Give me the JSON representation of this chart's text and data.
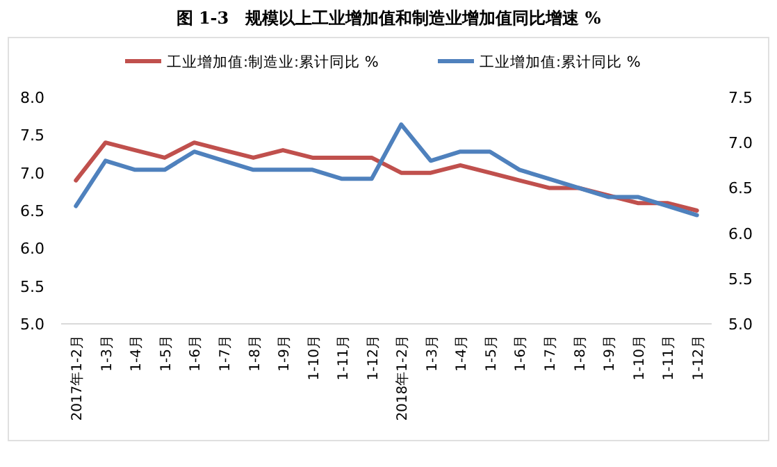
{
  "chart_data": {
    "type": "line",
    "title": "图 1-3　规模以上工业增加值和制造业增加值同比增速 %",
    "categories": [
      "2017年1-2月",
      "1-3月",
      "1-4月",
      "1-5月",
      "1-6月",
      "1-7月",
      "1-8月",
      "1-9月",
      "1-10月",
      "1-11月",
      "1-12月",
      "2018年1-2月",
      "1-3月",
      "1-4月",
      "1-5月",
      "1-6月",
      "1-7月",
      "1-8月",
      "1-9月",
      "1-10月",
      "1-11月",
      "1-12月"
    ],
    "series": [
      {
        "name": "工业增加值:制造业:累计同比 %",
        "color": "#c0504d",
        "values": [
          6.9,
          7.4,
          7.3,
          7.2,
          7.4,
          7.3,
          7.2,
          7.3,
          7.2,
          7.2,
          7.2,
          7.0,
          7.0,
          7.1,
          7.0,
          6.9,
          6.8,
          6.8,
          6.7,
          6.6,
          6.6,
          6.5
        ]
      },
      {
        "name": "工业增加值:累计同比 %",
        "color": "#4f81bd",
        "axis": "y2",
        "values": [
          6.3,
          6.8,
          6.7,
          6.7,
          6.9,
          6.8,
          6.7,
          6.7,
          6.7,
          6.6,
          6.6,
          7.2,
          6.8,
          6.9,
          6.9,
          6.7,
          6.6,
          6.5,
          6.4,
          6.4,
          6.3,
          6.2
        ]
      }
    ],
    "ylim": [
      5.0,
      8.0
    ],
    "yticks": [
      {
        "value": 5,
        "label": "5.0"
      },
      {
        "value": 5.5,
        "label": "5.5"
      },
      {
        "value": 6,
        "label": "6.0"
      },
      {
        "value": 6.5,
        "label": "6.5"
      },
      {
        "value": 7,
        "label": "7.0"
      },
      {
        "value": 7.5,
        "label": "7.5"
      },
      {
        "value": 8,
        "label": "8.0"
      }
    ],
    "y2lim": [
      5.0,
      7.5
    ],
    "y2ticks": [
      {
        "value": 5,
        "label": "5.0"
      },
      {
        "value": 5.5,
        "label": "5.5"
      },
      {
        "value": 6,
        "label": "6.0"
      },
      {
        "value": 6.5,
        "label": "6.5"
      },
      {
        "value": 7,
        "label": "7.0"
      },
      {
        "value": 7.5,
        "label": "7.5"
      }
    ],
    "grid": false,
    "legend": "top",
    "marker": "none",
    "line_style": "solid"
  }
}
